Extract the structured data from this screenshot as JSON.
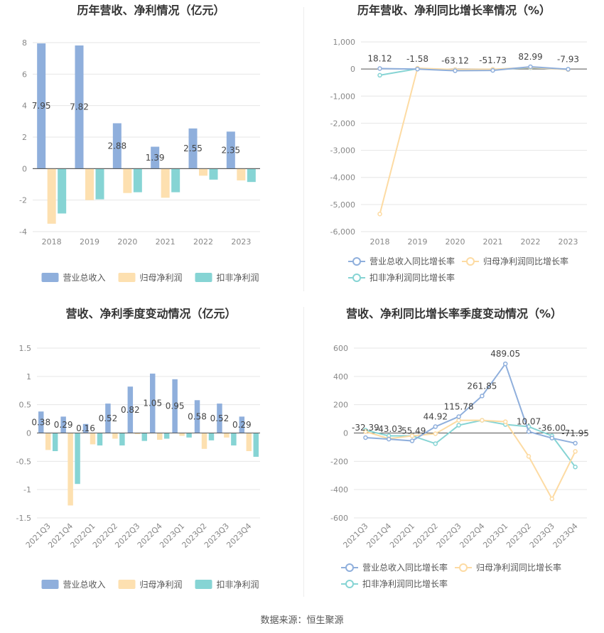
{
  "footer": {
    "source": "数据来源：恒生聚源"
  },
  "colors": {
    "revenue": "#8fafdc",
    "net_profit": "#fde0b0",
    "deducted_net_profit": "#86d4d4",
    "revenue_line": "#8fafdc",
    "net_profit_line": "#fddba3",
    "deducted_line": "#86d4d4",
    "grid": "#e6e6e6",
    "axis_text": "#888888",
    "title": "#333333",
    "label": "#444444"
  },
  "chart_data": [
    {
      "id": "annual_bar",
      "type": "bar",
      "title": "历年营收、净利情况（亿元）",
      "categories": [
        "2018",
        "2019",
        "2020",
        "2021",
        "2022",
        "2023"
      ],
      "ylim": [
        -4,
        8
      ],
      "yticks": [
        "8",
        "6",
        "4",
        "2",
        "0",
        "-2",
        "-4"
      ],
      "series": [
        {
          "name": "营业总收入",
          "values": [
            7.95,
            7.82,
            2.88,
            1.39,
            2.55,
            2.35
          ],
          "labels": [
            "7.95",
            "7.82",
            "2.88",
            "1.39",
            "2.55",
            "2.35"
          ]
        },
        {
          "name": "归母净利润",
          "values": [
            -3.5,
            -2.0,
            -1.55,
            -1.85,
            -0.45,
            -0.75
          ]
        },
        {
          "name": "扣非净利润",
          "values": [
            -2.85,
            -1.95,
            -1.5,
            -1.5,
            -0.7,
            -0.85
          ]
        }
      ],
      "legend": [
        "营业总收入",
        "归母净利润",
        "扣非净利润"
      ]
    },
    {
      "id": "annual_line",
      "type": "line",
      "title": "历年营收、净利同比增长率情况（%）",
      "categories": [
        "2018",
        "2019",
        "2020",
        "2021",
        "2022",
        "2023"
      ],
      "ylim": [
        -6000,
        1000
      ],
      "yticks": [
        "1,000",
        "0",
        "-1,000",
        "-2,000",
        "-3,000",
        "-4,000",
        "-5,000",
        "-6,000"
      ],
      "series": [
        {
          "name": "营业总收入同比增长率",
          "values": [
            18.12,
            -1.58,
            -63.12,
            -51.73,
            82.99,
            -7.93
          ],
          "labels": [
            "18.12",
            "-1.58",
            "-63.12",
            "-51.73",
            "82.99",
            "-7.93"
          ]
        },
        {
          "name": "归母净利润同比增长率",
          "values": [
            -5350,
            30,
            -20,
            -10,
            60,
            -20
          ]
        },
        {
          "name": "扣非净利润同比增长率",
          "values": [
            -230,
            10,
            -30,
            -20,
            50,
            -10
          ]
        }
      ],
      "legend": [
        "营业总收入同比增长率",
        "归母净利润同比增长率",
        "扣非净利润同比增长率"
      ]
    },
    {
      "id": "quarter_bar",
      "type": "bar",
      "title": "营收、净利季度变动情况（亿元）",
      "categories": [
        "2021Q3",
        "2021Q4",
        "2022Q1",
        "2022Q2",
        "2022Q3",
        "2022Q4",
        "2023Q1",
        "2023Q2",
        "2023Q3",
        "2023Q4"
      ],
      "ylim": [
        -1.5,
        1.5
      ],
      "yticks": [
        "1.5",
        "1",
        "0.5",
        "0",
        "-0.5",
        "-1",
        "-1.5"
      ],
      "series": [
        {
          "name": "营业总收入",
          "values": [
            0.38,
            0.29,
            0.16,
            0.52,
            0.82,
            1.05,
            0.95,
            0.58,
            0.52,
            0.29
          ],
          "labels": [
            "0.38",
            "0.29",
            "0.16",
            "0.52",
            "0.82",
            "1.05",
            "0.95",
            "0.58",
            "0.52",
            "0.29"
          ]
        },
        {
          "name": "归母净利润",
          "values": [
            -0.3,
            -1.28,
            -0.2,
            -0.1,
            -0.02,
            -0.12,
            -0.05,
            -0.28,
            -0.08,
            -0.32
          ]
        },
        {
          "name": "扣非净利润",
          "values": [
            -0.32,
            -0.9,
            -0.22,
            -0.22,
            -0.14,
            -0.1,
            -0.08,
            -0.13,
            -0.22,
            -0.42
          ]
        }
      ],
      "legend": [
        "营业总收入",
        "归母净利润",
        "扣非净利润"
      ]
    },
    {
      "id": "quarter_line",
      "type": "line",
      "title": "营收、净利同比增长率季度变动情况（%）",
      "categories": [
        "2021Q3",
        "2021Q4",
        "2022Q1",
        "2022Q2",
        "2022Q3",
        "2022Q4",
        "2023Q1",
        "2023Q2",
        "2023Q3",
        "2023Q4"
      ],
      "ylim": [
        -600,
        600
      ],
      "yticks": [
        "600",
        "400",
        "200",
        "0",
        "-200",
        "-400",
        "-600"
      ],
      "series": [
        {
          "name": "营业总收入同比增长率",
          "values": [
            -32.39,
            -43.03,
            -55.49,
            44.92,
            115.78,
            261.85,
            489.05,
            10.07,
            -36.0,
            -71.95
          ],
          "labels": [
            "-32.39",
            "-43.03",
            "-55.49",
            "44.92",
            "115.78",
            "261.85",
            "489.05",
            "10.07",
            "-36.00",
            "-71.95"
          ]
        },
        {
          "name": "归母净利润同比增长率",
          "values": [
            10,
            -40,
            -20,
            -5,
            90,
            90,
            80,
            -165,
            -465,
            -130
          ]
        },
        {
          "name": "扣非净利润同比增长率",
          "values": [
            20,
            -20,
            -20,
            -75,
            55,
            90,
            60,
            45,
            -20,
            -240
          ]
        }
      ],
      "legend": [
        "营业总收入同比增长率",
        "归母净利润同比增长率",
        "扣非净利润同比增长率"
      ]
    }
  ]
}
